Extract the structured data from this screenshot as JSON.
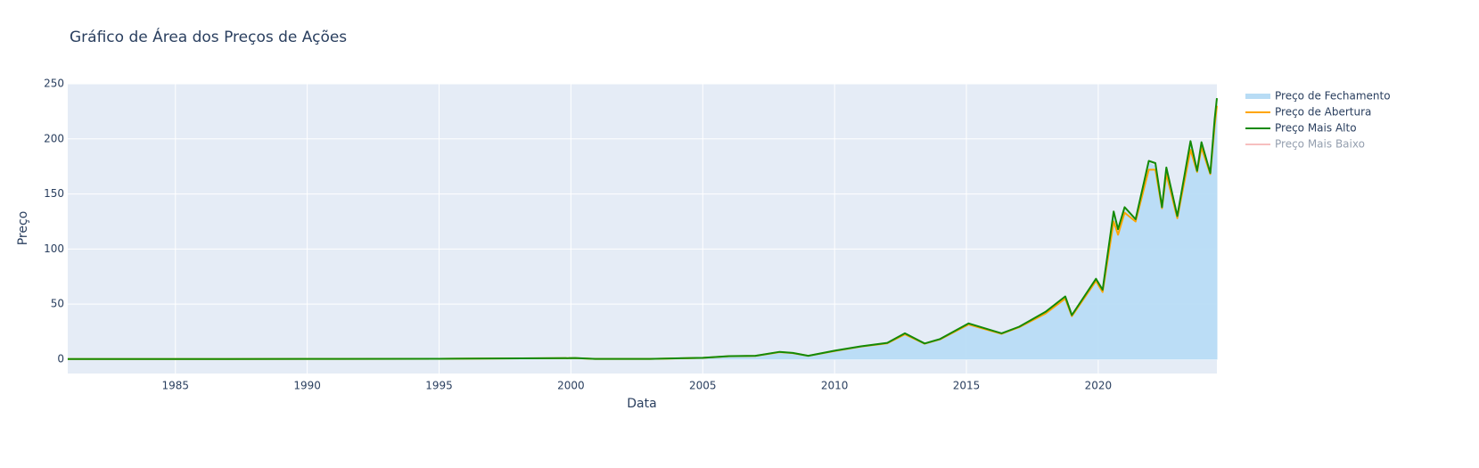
{
  "chart_data": {
    "type": "area",
    "title": "Gráfico de Área dos Preços de Ações",
    "x_label": "Data",
    "y_label": "Preço",
    "x": [
      "1980-12",
      "1985-01",
      "1990-01",
      "1995-01",
      "1999-12",
      "2000-03",
      "2000-12",
      "2003-01",
      "2005-01",
      "2006-01",
      "2007-01",
      "2007-12",
      "2008-06",
      "2009-01",
      "2010-01",
      "2011-01",
      "2012-01",
      "2012-09",
      "2013-06",
      "2014-01",
      "2015-02",
      "2016-05",
      "2017-01",
      "2018-01",
      "2018-10",
      "2019-01",
      "2019-12",
      "2020-03",
      "2020-08",
      "2020-10",
      "2021-01",
      "2021-06",
      "2021-12",
      "2022-03",
      "2022-06",
      "2022-08",
      "2023-01",
      "2023-07",
      "2023-10",
      "2023-12",
      "2024-04",
      "2024-06",
      "2024-07"
    ],
    "series": [
      {
        "name": "Preço de Fechamento",
        "color": "#b8dcf5",
        "fill": true,
        "values": [
          0.1,
          0.1,
          0.3,
          0.35,
          0.9,
          1.0,
          0.25,
          0.3,
          1.2,
          2.7,
          3.0,
          6.5,
          5.5,
          3.0,
          7.5,
          11.5,
          14.5,
          23,
          14,
          18,
          32,
          23,
          29,
          42,
          56,
          39,
          72,
          60,
          129,
          115,
          135,
          125,
          178,
          175,
          135,
          172,
          127,
          195,
          168,
          195,
          166,
          215,
          234
        ]
      },
      {
        "name": "Preço de Abertura",
        "color": "#ffa500",
        "values": [
          0.1,
          0.1,
          0.3,
          0.35,
          0.9,
          1.0,
          0.25,
          0.3,
          1.2,
          2.7,
          3.0,
          6.4,
          5.5,
          3.0,
          7.4,
          11.4,
          14.4,
          22.5,
          14,
          18,
          31.5,
          23,
          29,
          41.5,
          55,
          39,
          71,
          61,
          125,
          113,
          133,
          125,
          172,
          172,
          137,
          168,
          128,
          190,
          170,
          192,
          168,
          212,
          230
        ]
      },
      {
        "name": "Preço Mais Alto",
        "color": "#138a07",
        "values": [
          0.1,
          0.1,
          0.3,
          0.35,
          0.95,
          1.05,
          0.26,
          0.3,
          1.25,
          2.8,
          3.1,
          6.7,
          5.7,
          3.1,
          7.7,
          11.7,
          14.8,
          23.5,
          14.3,
          18.3,
          32.5,
          23.5,
          29.5,
          43,
          57,
          40,
          73,
          63,
          134,
          118,
          138,
          127,
          180,
          178,
          138,
          174,
          130,
          198,
          171,
          197,
          169,
          218,
          237
        ]
      },
      {
        "name": "Preço Mais Baixo",
        "color": "#f08080",
        "visible": false
      }
    ],
    "xlim": [
      "1980-12",
      "2024-07"
    ],
    "xticks": [
      "1985",
      "1990",
      "1995",
      "2000",
      "2005",
      "2010",
      "2015",
      "2020"
    ],
    "ylim": [
      -13,
      250
    ],
    "yticks": [
      0,
      50,
      100,
      150,
      200,
      250
    ],
    "grid": true,
    "legend": "right"
  }
}
